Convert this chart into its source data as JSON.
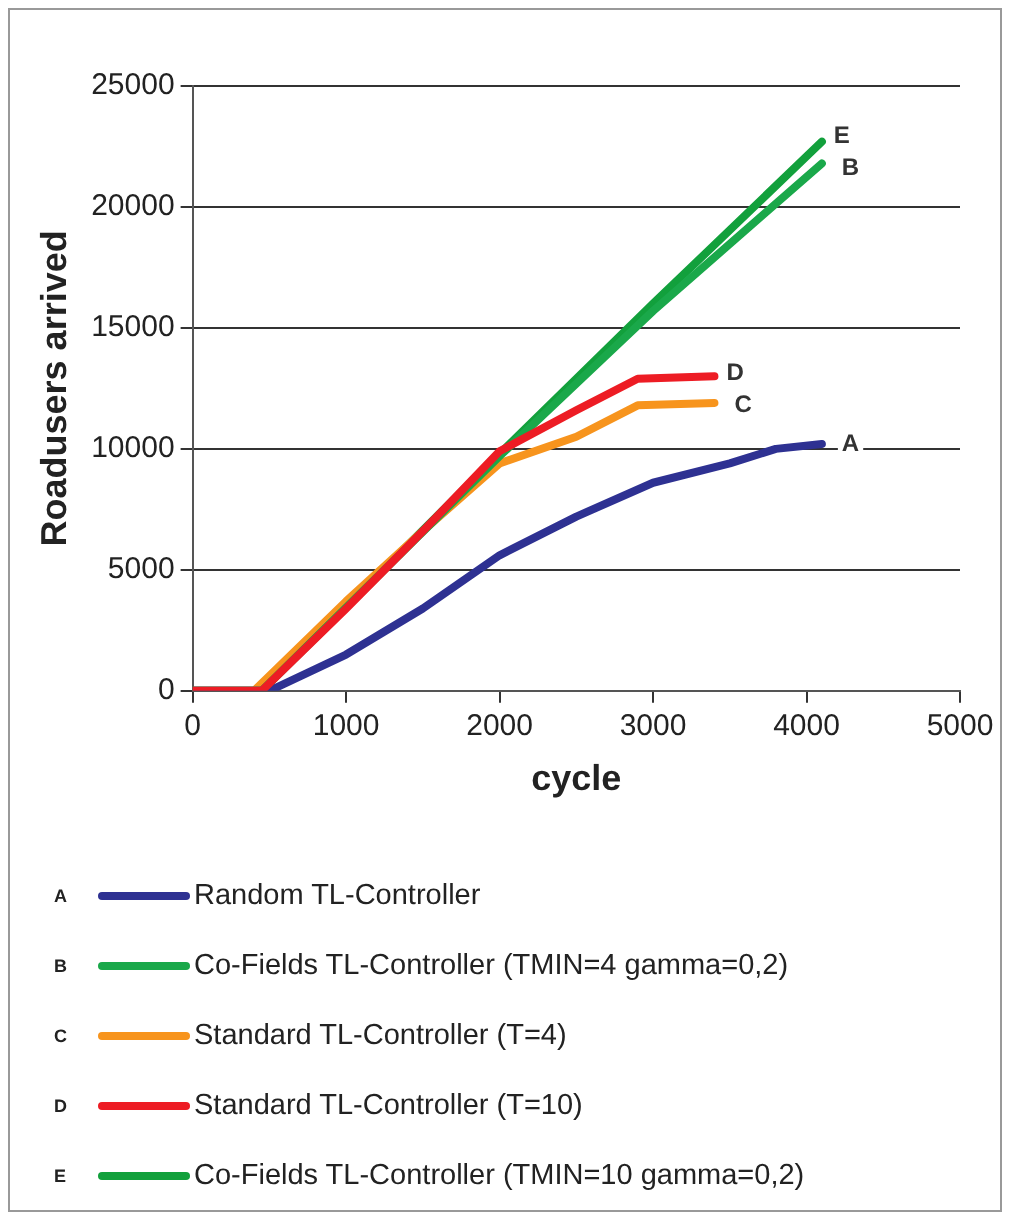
{
  "chart_data": {
    "type": "line",
    "xlabel": "cycle",
    "ylabel": "Roadusers arrived",
    "xlim": [
      0,
      5000
    ],
    "xticks": [
      0,
      1000,
      2000,
      3000,
      4000,
      5000
    ],
    "ylim": [
      0,
      25000
    ],
    "yticks": [
      0,
      5000,
      10000,
      15000,
      20000,
      25000
    ],
    "grid": "y",
    "legend": "bottom",
    "marker": "none",
    "line_style": "solid",
    "series": [
      {
        "name": "Random TL-Controller",
        "color": "#2e3192",
        "x": [
          0,
          500,
          1000,
          1500,
          2000,
          2500,
          3000,
          3500,
          3800,
          4100
        ],
        "values": [
          0,
          0,
          1500,
          3400,
          5600,
          7200,
          8600,
          9400,
          10000,
          10200
        ]
      },
      {
        "name": "Co-Fields TL-Controller (TMIN=4 gamma=0,2)",
        "color": "#1aa84a",
        "x": [
          0,
          450,
          2000,
          3000,
          4100
        ],
        "values": [
          0,
          0,
          9700,
          15700,
          21800
        ]
      },
      {
        "name": "Standard TL-Controller (T=4)",
        "color": "#f7941d",
        "x": [
          0,
          400,
          1000,
          1500,
          2000,
          2500,
          2900,
          3400
        ],
        "values": [
          0,
          0,
          3700,
          6600,
          9400,
          10500,
          11800,
          11900
        ]
      },
      {
        "name": "Standard TL-Controller (T=10)",
        "color": "#ed1c24",
        "x": [
          0,
          450,
          1000,
          1500,
          2000,
          2500,
          2900,
          3400
        ],
        "values": [
          0,
          0,
          3400,
          6600,
          9900,
          11600,
          12900,
          13000
        ]
      },
      {
        "name": "Co-Fields TL-Controller (TMIN=10 gamma=0,2)",
        "color": "#12a03c",
        "x": [
          0,
          450,
          2000,
          3000,
          4100
        ],
        "values": [
          0,
          0,
          9800,
          16000,
          22700
        ]
      }
    ],
    "annotations": [
      "A",
      "B",
      "C",
      "D",
      "E"
    ]
  }
}
